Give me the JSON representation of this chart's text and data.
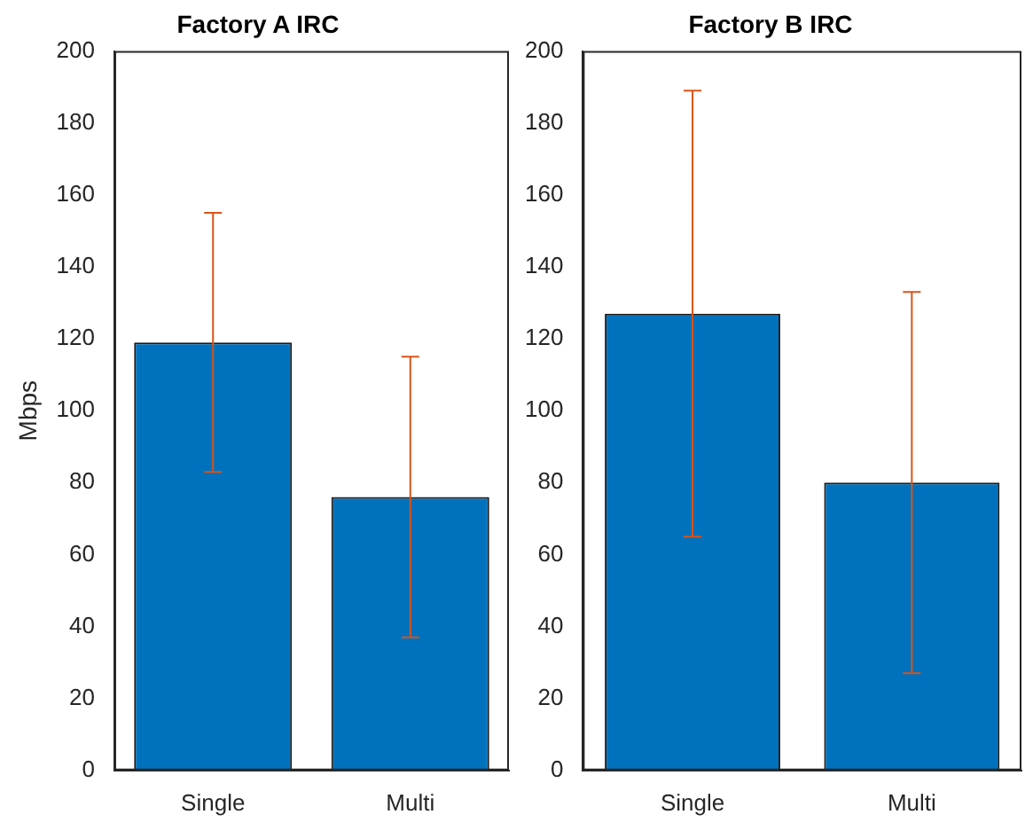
{
  "chart_data": [
    {
      "type": "bar",
      "title": "Factory A IRC",
      "ylabel": "Mbps",
      "categories": [
        "Single",
        "Multi"
      ],
      "values": [
        119,
        76
      ],
      "errors": [
        36,
        39
      ],
      "color": "#0072bd",
      "ylim": [
        0,
        200
      ],
      "yticks": [
        0,
        20,
        40,
        60,
        80,
        100,
        120,
        140,
        160,
        180,
        200
      ],
      "grid": false,
      "legend": false
    },
    {
      "type": "bar",
      "title": "Factory B IRC",
      "categories": [
        "Single",
        "Multi"
      ],
      "values": [
        127,
        80
      ],
      "errors": [
        62,
        53
      ],
      "color": "#0072bd",
      "ylim": [
        0,
        200
      ],
      "yticks": [
        0,
        20,
        40,
        60,
        80,
        100,
        120,
        140,
        160,
        180,
        200
      ],
      "grid": false,
      "legend": false
    }
  ]
}
